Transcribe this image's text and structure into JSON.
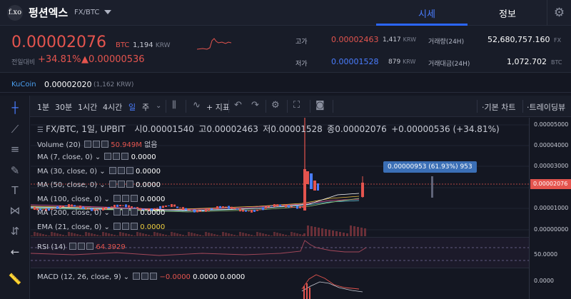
{
  "header": {
    "logo_text": "f.xo",
    "coin_name": "펑션엑스",
    "pair": "FX/BTC",
    "tabs": [
      {
        "label": "시세"
      },
      {
        "label": "정보"
      }
    ]
  },
  "price": {
    "current": "0.00002076",
    "unit": "BTC",
    "krw_value": "1,194",
    "krw_unit": "KRW",
    "change_label": "전일대비",
    "change_pct": "+34.81%",
    "change_amt": "▲0.00000536"
  },
  "stats": {
    "high_label": "고가",
    "high_value": "0.00002463",
    "high_krw": "1,417",
    "low_label": "저가",
    "low_value": "0.00001528",
    "low_krw": "879",
    "krw_unit": "KRW",
    "vol_label": "거래량(24H)",
    "vol_value": "52,680,757.160",
    "vol_unit": "FX",
    "amount_label": "거래대금(24H)",
    "amount_value": "1,072.702",
    "amount_unit": "BTC"
  },
  "kucoin": {
    "name": "KuCoin",
    "price": "0.00002020",
    "krw": "(1,162 KRW)"
  },
  "toolbar": {
    "intervals": [
      "1분",
      "30분",
      "1시간",
      "4시간",
      "일",
      "주"
    ],
    "indicator_label": "지표",
    "basic_chart": "기본 차트",
    "tradingview": "트레이딩뷰"
  },
  "chart_header": {
    "title": "FX/BTC, 1일, UPBIT",
    "open_label": "시",
    "open": "0.00001540",
    "high_label": "고",
    "high": "0.00002463",
    "low_label": "저",
    "low": "0.00001528",
    "close_label": "종",
    "close": "0.00002076",
    "change": "+0.00000536 (+34.81%)"
  },
  "legends": {
    "volume": {
      "name": "Volume (20)",
      "value": "50.949M",
      "extra": "없음"
    },
    "ma7": {
      "name": "MA (7, close, 0)",
      "value": "0.0000"
    },
    "ma30": {
      "name": "MA (30, close, 0)",
      "value": "0.0000"
    },
    "ma50": {
      "name": "MA (50, close, 0)",
      "value": "0.0000"
    },
    "ma100": {
      "name": "MA (100, close, 0)",
      "value": "0.0000"
    },
    "ma200": {
      "name": "MA (200, close, 0)",
      "value": "0.0000"
    },
    "ema21": {
      "name": "EMA (21, close, 0)",
      "value": "0.0000"
    },
    "rsi": {
      "name": "RSI (14)",
      "value": "64.3929"
    },
    "macd": {
      "name": "MACD (12, 26, close, 9)",
      "v1": "−0.0000",
      "v2": "0.0000",
      "v3": "0.0000"
    }
  },
  "tooltip": "0.00000953 (61.93%) 953",
  "axis": {
    "price_ticks": [
      "0.00005000",
      "0.00004000",
      "0.00003000",
      "0.00002000",
      "0.00001000",
      "0.00000000"
    ],
    "current_tag": "0.00002076",
    "rsi_tick": "50.0000",
    "macd_tick": "0.0000"
  },
  "colors": {
    "up": "#e4544e",
    "down": "#4a7dff",
    "accent": "#2b66ff"
  }
}
